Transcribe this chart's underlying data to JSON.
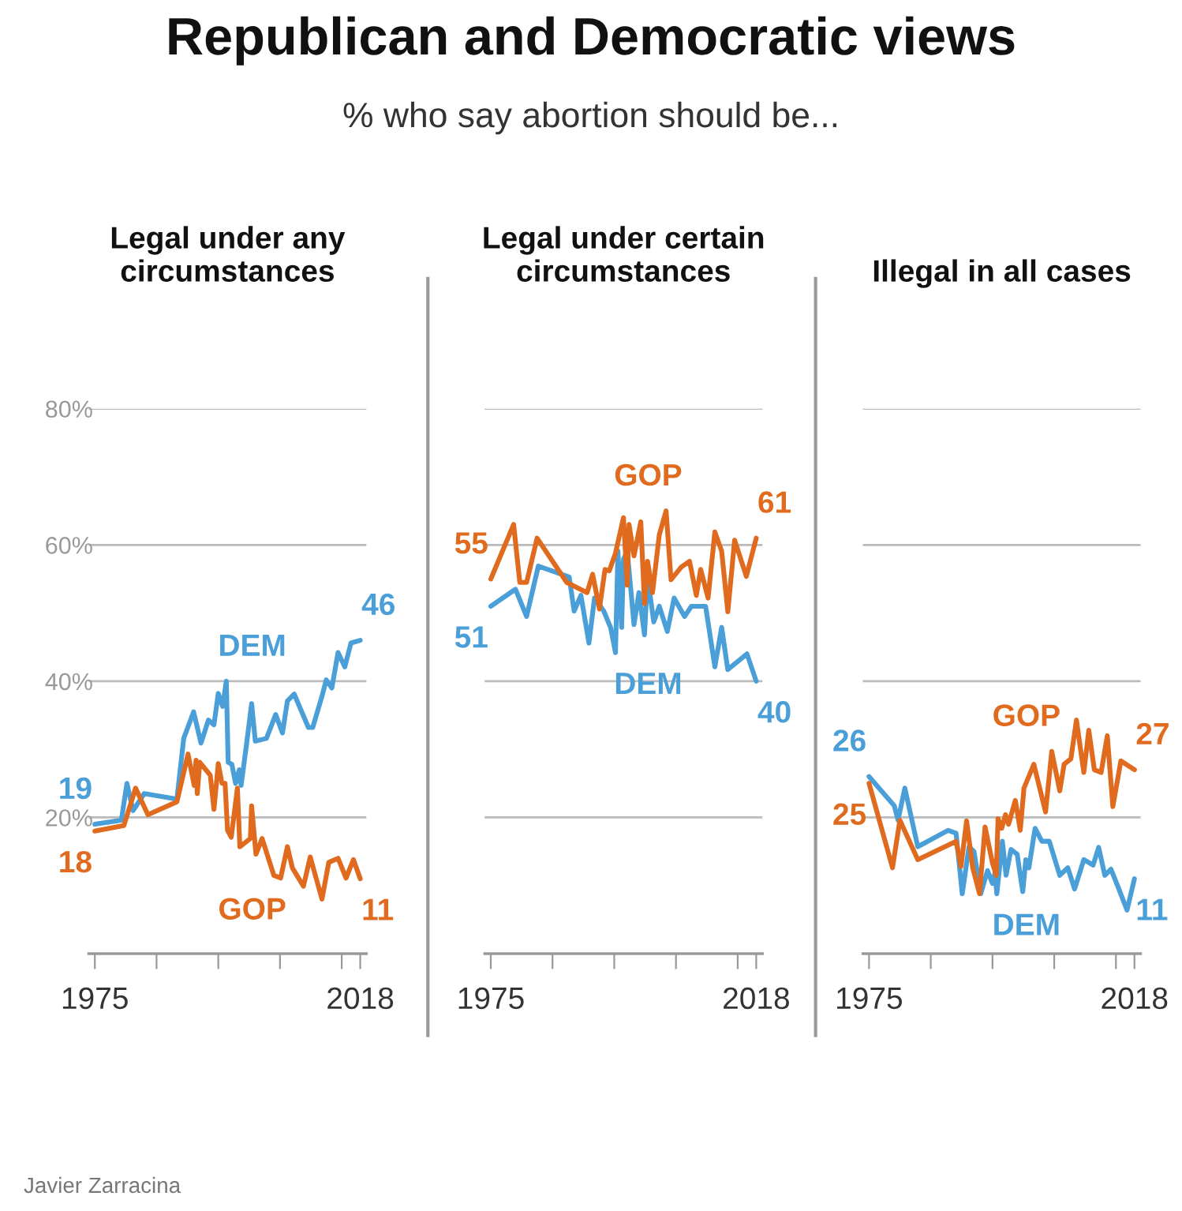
{
  "chart_data": [
    {
      "type": "line",
      "title": "Legal under any\ncircumstances",
      "annotations": [
        "Republican and Democratic views",
        "% who say abortion should be...",
        "Javier Zarracina"
      ],
      "xlim": [
        1974,
        2019
      ],
      "xticks": [
        1975,
        {
          "value": 1985,
          "label": null
        },
        {
          "value": 1995,
          "label": null
        },
        {
          "value": 2005,
          "label": null
        },
        {
          "value": 2015,
          "label": null
        },
        2018
      ],
      "ylim": [
        0,
        80
      ],
      "yticks": [
        {
          "value": 20,
          "label": "20%"
        },
        {
          "value": 40,
          "label": "40%"
        },
        {
          "value": 60,
          "label": "60%"
        },
        {
          "value": 80,
          "label": "80%"
        }
      ],
      "grid": "y",
      "series": [
        {
          "name": "DEM",
          "color": "#4a9fd8",
          "x": [
            1975,
            1979.3,
            1980.2,
            1981.2,
            1983,
            1988.3,
            1989.4,
            1991,
            1992.2,
            1993.4,
            1994.3,
            1995,
            1995.7,
            1996.3,
            1996.6,
            1997.2,
            1997.8,
            1998.4,
            1998.7,
            1999.6,
            2000.4,
            2001,
            2002.8,
            2004.3,
            2005.4,
            2006.2,
            2007.3,
            2009.6,
            2010.3,
            2011.8,
            2012.5,
            2013.4,
            2014.4,
            2015.5,
            2016.5,
            2018
          ],
          "values": [
            19,
            19.6,
            25,
            21,
            23.5,
            22.7,
            31.6,
            35.5,
            30.9,
            34.3,
            33.6,
            38.2,
            36.3,
            40,
            28.1,
            27.8,
            25,
            27,
            24.7,
            30.9,
            36.7,
            31.2,
            31.6,
            35.1,
            32.4,
            37.1,
            38.1,
            33.2,
            33.2,
            37.8,
            40.2,
            39,
            44.2,
            42.1,
            45.6,
            46
          ],
          "value_labels": [
            "19",
            null,
            null,
            null,
            null,
            null,
            null,
            null,
            null,
            null,
            null,
            null,
            null,
            null,
            null,
            null,
            null,
            null,
            null,
            null,
            null,
            null,
            null,
            null,
            null,
            null,
            null,
            null,
            null,
            null,
            null,
            null,
            null,
            null,
            null,
            "46"
          ]
        },
        {
          "name": "GOP",
          "color": "#e06a1e",
          "x": [
            1975,
            1979.7,
            1981.6,
            1983.6,
            1988.3,
            1990.1,
            1991.1,
            1991.4,
            1991.6,
            1992,
            1993.7,
            1994.3,
            1995,
            1995.6,
            1996.1,
            1996.5,
            1997.1,
            1998.1,
            1998.5,
            2000.2,
            2000.4,
            2001.1,
            2002.1,
            2004,
            2005.1,
            2006.2,
            2007,
            2008.8,
            2009.9,
            2011.8,
            2012.9,
            2014.4,
            2015.7,
            2016.9,
            2018
          ],
          "values": [
            18,
            18.8,
            24.3,
            20.4,
            22.3,
            29.3,
            24.7,
            28.4,
            23.5,
            28.1,
            26.2,
            21.2,
            27.9,
            25,
            25,
            18.1,
            17.1,
            24.3,
            15.7,
            16.9,
            21.7,
            14.6,
            16.9,
            11.5,
            11.1,
            15.7,
            12.6,
            9.9,
            14.2,
            8,
            13.4,
            14,
            11.1,
            13.8,
            11
          ],
          "value_labels": [
            "18",
            null,
            null,
            null,
            null,
            null,
            null,
            null,
            null,
            null,
            null,
            null,
            null,
            null,
            null,
            null,
            null,
            null,
            null,
            null,
            null,
            null,
            null,
            null,
            null,
            null,
            null,
            null,
            null,
            null,
            null,
            null,
            null,
            null,
            "11"
          ]
        }
      ]
    },
    {
      "type": "line",
      "title": "Legal under certain\ncircumstances",
      "tick_labels": "x",
      "xlim": [
        1974,
        2019
      ],
      "xticks": [
        1975,
        {
          "value": 1985,
          "label": null
        },
        {
          "value": 1995,
          "label": null
        },
        {
          "value": 2005,
          "label": null
        },
        {
          "value": 2015,
          "label": null
        },
        2018
      ],
      "ylim": [
        0,
        80
      ],
      "yticks": [
        {
          "value": 20,
          "label": null
        },
        {
          "value": 40,
          "label": null
        },
        {
          "value": 60,
          "label": null
        },
        {
          "value": 80,
          "label": null
        }
      ],
      "grid": "y",
      "series": [
        {
          "name": "DEM",
          "color": "#4a9fd8",
          "x": [
            1975,
            1979,
            1980.8,
            1982.7,
            1987.7,
            1988.5,
            1989.6,
            1990.9,
            1991.8,
            1993.3,
            1994.4,
            1995.2,
            1995.6,
            1996.2,
            1996.5,
            1997.1,
            1997.7,
            1998.2,
            1999,
            1999.9,
            2000.4,
            2001.4,
            2002.3,
            2003.6,
            2004.7,
            2006.4,
            2007.5,
            2009.8,
            2011.3,
            2012.4,
            2013.4,
            2016.5,
            2018
          ],
          "values": [
            51,
            53.5,
            49.5,
            56.9,
            55.3,
            50.3,
            52.6,
            45.6,
            52.2,
            50.3,
            47.9,
            44.2,
            59.1,
            47.9,
            57.9,
            59.1,
            53.3,
            48.3,
            53,
            46.8,
            55.3,
            48.7,
            51,
            47.3,
            52.2,
            49.5,
            51,
            51,
            42.1,
            47.9,
            41.7,
            44,
            40
          ],
          "value_labels": [
            "51",
            null,
            null,
            null,
            null,
            null,
            null,
            null,
            null,
            null,
            null,
            null,
            null,
            null,
            null,
            null,
            null,
            null,
            null,
            null,
            null,
            null,
            null,
            null,
            null,
            null,
            null,
            null,
            null,
            null,
            null,
            null,
            "40"
          ]
        },
        {
          "name": "GOP",
          "color": "#e06a1e",
          "x": [
            1975,
            1978.7,
            1979.7,
            1980.8,
            1982.5,
            1987.3,
            1990.6,
            1991.5,
            1992.6,
            1993.5,
            1994.2,
            1995.2,
            1996.5,
            1997.1,
            1997.4,
            1998.2,
            1999.3,
            1999.9,
            2000.4,
            2001.2,
            2002.3,
            2003.4,
            2004.2,
            2005.9,
            2007.2,
            2008.3,
            2009,
            2010.2,
            2011.3,
            2012.4,
            2013.4,
            2014.5,
            2016.4,
            2018
          ],
          "values": [
            55,
            63,
            54.5,
            54.5,
            61,
            54.5,
            53,
            55.7,
            50.6,
            56.4,
            56.2,
            58.8,
            64,
            54.1,
            63,
            58.4,
            63.4,
            51.4,
            57.6,
            53,
            61.5,
            65,
            54.9,
            56.8,
            57.6,
            52.6,
            56.4,
            52.2,
            61.9,
            59.1,
            50.2,
            60.7,
            55.4,
            61
          ],
          "value_labels": [
            "55",
            null,
            null,
            null,
            null,
            null,
            null,
            null,
            null,
            null,
            null,
            null,
            null,
            null,
            null,
            null,
            null,
            null,
            null,
            null,
            null,
            null,
            null,
            null,
            null,
            null,
            null,
            null,
            null,
            null,
            null,
            null,
            null,
            "61"
          ]
        }
      ]
    },
    {
      "type": "line",
      "title": "Illegal in all cases",
      "tick_labels": "x",
      "xlim": [
        1974,
        2019
      ],
      "xticks": [
        1975,
        {
          "value": 1985,
          "label": null
        },
        {
          "value": 1995,
          "label": null
        },
        {
          "value": 2005,
          "label": null
        },
        {
          "value": 2015,
          "label": null
        },
        2018
      ],
      "ylim": [
        0,
        80
      ],
      "yticks": [
        {
          "value": 20,
          "label": null
        },
        {
          "value": 40,
          "label": null
        },
        {
          "value": 60,
          "label": null
        },
        {
          "value": 80,
          "label": null
        }
      ],
      "grid": "y",
      "series": [
        {
          "name": "DEM",
          "color": "#4a9fd8",
          "x": [
            1975,
            1979.1,
            1979.7,
            1980.8,
            1982.9,
            1987.8,
            1989.1,
            1990.1,
            1991.2,
            1992,
            1993.1,
            1994.2,
            1995,
            1995.4,
            1995.7,
            1996.6,
            1997.2,
            1998,
            1999,
            1999.9,
            2000.4,
            2000.9,
            2001.9,
            2003,
            2004.2,
            2005.9,
            2007.2,
            2008.3,
            2009.8,
            2011.3,
            2012.2,
            2013.2,
            2014.2,
            2015.3,
            2016.8,
            2018
          ],
          "values": [
            26,
            21.7,
            19.6,
            24.3,
            15.7,
            18.1,
            17.7,
            8.8,
            15.7,
            15,
            8.8,
            12.2,
            10.3,
            11.9,
            8.8,
            16.5,
            11.5,
            15.3,
            14.6,
            9.1,
            13.8,
            12.6,
            18.4,
            16.5,
            16.5,
            11.5,
            12.6,
            9.5,
            13.8,
            13,
            15.6,
            11.5,
            12.4,
            9.9,
            6.4,
            11
          ],
          "value_labels": [
            "26",
            null,
            null,
            null,
            null,
            null,
            null,
            null,
            null,
            null,
            null,
            null,
            null,
            null,
            null,
            null,
            null,
            null,
            null,
            null,
            null,
            null,
            null,
            null,
            null,
            null,
            null,
            null,
            null,
            null,
            null,
            null,
            null,
            null,
            null,
            "11"
          ]
        },
        {
          "name": "GOP",
          "color": "#e06a1e",
          "x": [
            1975,
            1978.8,
            1980,
            1982.9,
            1989.1,
            1989.9,
            1990.8,
            1991.8,
            1992.9,
            1993.8,
            1995,
            1995.6,
            1995.9,
            1996.5,
            1997.1,
            1997.6,
            1998.7,
            1999.5,
            2000.1,
            2001.7,
            2003.6,
            2004.6,
            2005.9,
            2006.6,
            2007.7,
            2008.6,
            2009.8,
            2010.6,
            2011.5,
            2012.6,
            2013.6,
            2014.5,
            2015.8,
            2018
          ],
          "values": [
            25,
            12.6,
            19.6,
            13.8,
            16.5,
            12.8,
            19.5,
            12.6,
            8.8,
            18.6,
            13.3,
            11.5,
            19.8,
            18.4,
            20.4,
            19,
            22.5,
            18.1,
            24.3,
            27.8,
            20.8,
            29.7,
            23.9,
            27.8,
            28.6,
            34.3,
            26.6,
            32.8,
            27,
            26.6,
            32,
            21.6,
            28.3,
            27
          ],
          "value_labels": [
            "25",
            null,
            null,
            null,
            null,
            null,
            null,
            null,
            null,
            null,
            null,
            null,
            null,
            null,
            null,
            null,
            null,
            null,
            null,
            null,
            null,
            null,
            null,
            null,
            null,
            null,
            null,
            null,
            null,
            null,
            null,
            null,
            null,
            "27"
          ]
        }
      ]
    }
  ]
}
